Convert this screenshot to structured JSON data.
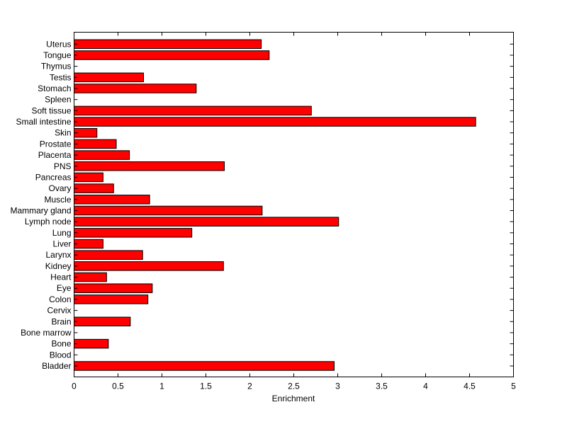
{
  "chart_data": {
    "type": "bar",
    "orientation": "horizontal",
    "title": "",
    "xlabel": "Enrichment",
    "ylabel": "",
    "xlim": [
      0,
      5
    ],
    "xticks": [
      "0",
      "0.5",
      "1",
      "1.5",
      "2",
      "2.5",
      "3",
      "3.5",
      "4",
      "4.5",
      "5"
    ],
    "grid": false,
    "bar_color": "#ff0000",
    "categories": [
      "Bladder",
      "Blood",
      "Bone",
      "Bone marrow",
      "Brain",
      "Cervix",
      "Colon",
      "Eye",
      "Heart",
      "Kidney",
      "Larynx",
      "Liver",
      "Lung",
      "Lymph node",
      "Mammary gland",
      "Muscle",
      "Ovary",
      "Pancreas",
      "PNS",
      "Placenta",
      "Prostate",
      "Skin",
      "Small intestine",
      "Soft tissue",
      "Spleen",
      "Stomach",
      "Testis",
      "Thymus",
      "Tongue",
      "Uterus"
    ],
    "values": [
      2.96,
      0,
      0.39,
      0,
      0.64,
      0,
      0.84,
      0.89,
      0.37,
      1.7,
      0.78,
      0.33,
      1.34,
      3.01,
      2.14,
      0.86,
      0.45,
      0.33,
      1.71,
      0.63,
      0.48,
      0.26,
      4.57,
      2.7,
      0,
      1.39,
      0.79,
      0,
      2.22,
      2.13
    ]
  }
}
